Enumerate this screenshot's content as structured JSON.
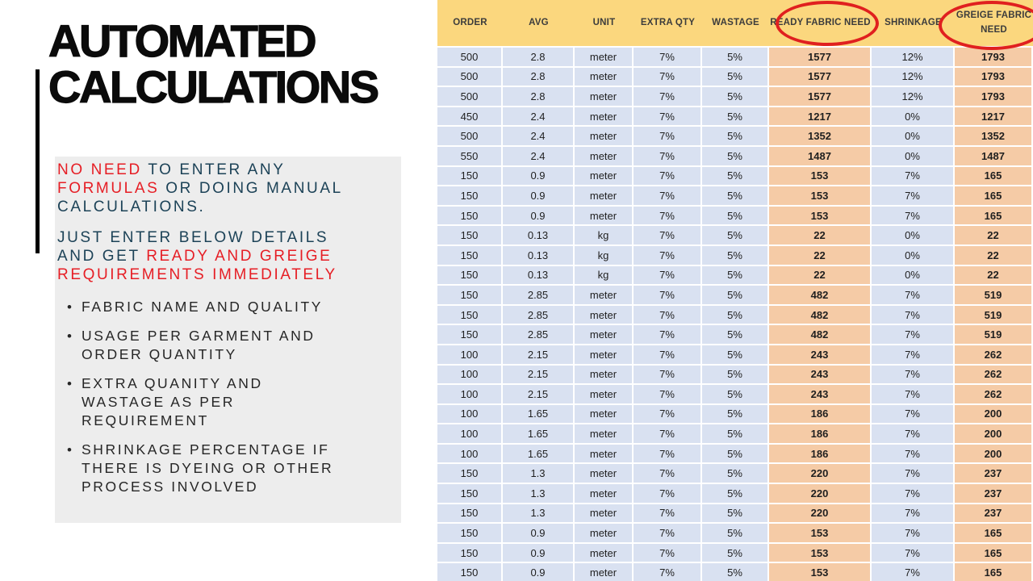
{
  "slide": {
    "title_line1": "AUTOMATED",
    "title_line2": "CALCULATIONS",
    "info_box": {
      "paragraphs": [
        {
          "lines": [
            [
              {
                "text": "NO NEED",
                "color": "red"
              },
              {
                "text": " TO ENTER ANY",
                "color": "blue"
              }
            ],
            [
              {
                "text": "FORMULAS",
                "color": "red"
              },
              {
                "text": " OR DOING MANUAL",
                "color": "blue"
              }
            ],
            [
              {
                "text": "CALCULATIONS.",
                "color": "blue"
              }
            ]
          ]
        },
        {
          "lines": [
            [
              {
                "text": "JUST ENTER BELOW DETAILS",
                "color": "blue"
              }
            ],
            [
              {
                "text": "AND GET ",
                "color": "blue"
              },
              {
                "text": "READY AND GREIGE",
                "color": "red"
              }
            ],
            [
              {
                "text": "REQUIREMENTS IMMEDIATELY",
                "color": "red"
              }
            ]
          ]
        }
      ],
      "bullets": [
        {
          "lines": [
            "FABRIC NAME AND QUALITY"
          ]
        },
        {
          "lines": [
            "USAGE PER GARMENT AND",
            "ORDER QUANTITY"
          ]
        },
        {
          "lines": [
            "EXTRA QUANITY AND",
            "WASTAGE AS PER",
            "REQUIREMENT"
          ]
        },
        {
          "lines": [
            "SHRINKAGE PERCENTAGE IF",
            "THERE IS DYEING OR OTHER",
            "PROCESS INVOLVED"
          ]
        }
      ],
      "bullet_glyph": "•"
    },
    "colors": {
      "title_black": "#0B0B0B",
      "text_red": "#E61E25",
      "text_blue": "#1C4257",
      "box_gray": "#EDEDED",
      "table_header_bg": "#FBD77E",
      "table_row_bg": "#D9E1F1",
      "table_highlight_bg": "#F5CBA6",
      "circle_red": "#E0201F"
    }
  },
  "table": {
    "headers": [
      "ORDER",
      "AVG",
      "UNIT",
      "EXTRA QTY",
      "WASTAGE",
      "READY FABRIC NEED",
      "SHRINKAGE",
      "GREIGE FABRIC NEED"
    ],
    "circled_headers": [
      "READY FABRIC NEED",
      "GREIGE FABRIC NEED"
    ],
    "highlight_columns": [
      5,
      7
    ],
    "rows": [
      [
        "500",
        "2.8",
        "meter",
        "7%",
        "5%",
        "1577",
        "12%",
        "1793"
      ],
      [
        "500",
        "2.8",
        "meter",
        "7%",
        "5%",
        "1577",
        "12%",
        "1793"
      ],
      [
        "500",
        "2.8",
        "meter",
        "7%",
        "5%",
        "1577",
        "12%",
        "1793"
      ],
      [
        "450",
        "2.4",
        "meter",
        "7%",
        "5%",
        "1217",
        "0%",
        "1217"
      ],
      [
        "500",
        "2.4",
        "meter",
        "7%",
        "5%",
        "1352",
        "0%",
        "1352"
      ],
      [
        "550",
        "2.4",
        "meter",
        "7%",
        "5%",
        "1487",
        "0%",
        "1487"
      ],
      [
        "150",
        "0.9",
        "meter",
        "7%",
        "5%",
        "153",
        "7%",
        "165"
      ],
      [
        "150",
        "0.9",
        "meter",
        "7%",
        "5%",
        "153",
        "7%",
        "165"
      ],
      [
        "150",
        "0.9",
        "meter",
        "7%",
        "5%",
        "153",
        "7%",
        "165"
      ],
      [
        "150",
        "0.13",
        "kg",
        "7%",
        "5%",
        "22",
        "0%",
        "22"
      ],
      [
        "150",
        "0.13",
        "kg",
        "7%",
        "5%",
        "22",
        "0%",
        "22"
      ],
      [
        "150",
        "0.13",
        "kg",
        "7%",
        "5%",
        "22",
        "0%",
        "22"
      ],
      [
        "150",
        "2.85",
        "meter",
        "7%",
        "5%",
        "482",
        "7%",
        "519"
      ],
      [
        "150",
        "2.85",
        "meter",
        "7%",
        "5%",
        "482",
        "7%",
        "519"
      ],
      [
        "150",
        "2.85",
        "meter",
        "7%",
        "5%",
        "482",
        "7%",
        "519"
      ],
      [
        "100",
        "2.15",
        "meter",
        "7%",
        "5%",
        "243",
        "7%",
        "262"
      ],
      [
        "100",
        "2.15",
        "meter",
        "7%",
        "5%",
        "243",
        "7%",
        "262"
      ],
      [
        "100",
        "2.15",
        "meter",
        "7%",
        "5%",
        "243",
        "7%",
        "262"
      ],
      [
        "100",
        "1.65",
        "meter",
        "7%",
        "5%",
        "186",
        "7%",
        "200"
      ],
      [
        "100",
        "1.65",
        "meter",
        "7%",
        "5%",
        "186",
        "7%",
        "200"
      ],
      [
        "100",
        "1.65",
        "meter",
        "7%",
        "5%",
        "186",
        "7%",
        "200"
      ],
      [
        "150",
        "1.3",
        "meter",
        "7%",
        "5%",
        "220",
        "7%",
        "237"
      ],
      [
        "150",
        "1.3",
        "meter",
        "7%",
        "5%",
        "220",
        "7%",
        "237"
      ],
      [
        "150",
        "1.3",
        "meter",
        "7%",
        "5%",
        "220",
        "7%",
        "237"
      ],
      [
        "150",
        "0.9",
        "meter",
        "7%",
        "5%",
        "153",
        "7%",
        "165"
      ],
      [
        "150",
        "0.9",
        "meter",
        "7%",
        "5%",
        "153",
        "7%",
        "165"
      ],
      [
        "150",
        "0.9",
        "meter",
        "7%",
        "5%",
        "153",
        "7%",
        "165"
      ]
    ]
  }
}
